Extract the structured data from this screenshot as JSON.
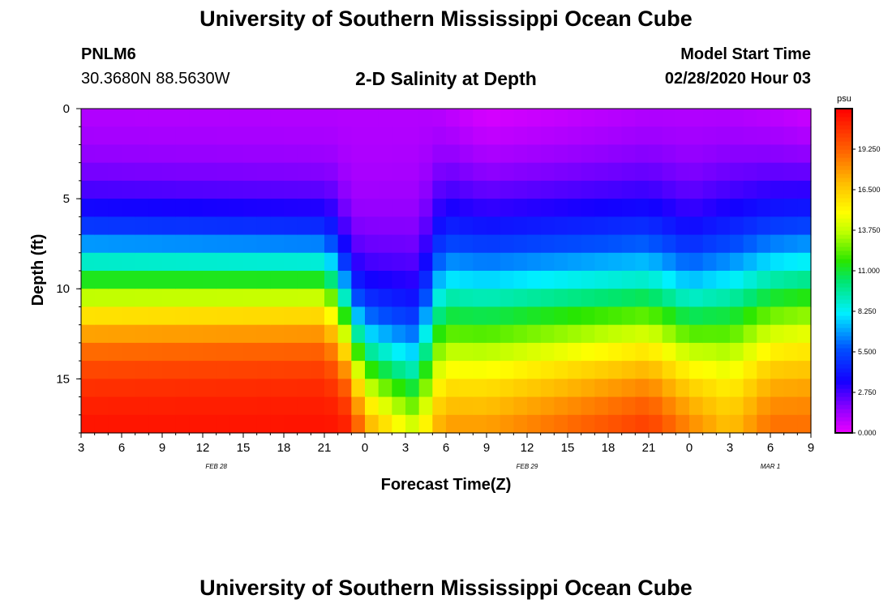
{
  "header": {
    "title": "University of Southern Mississippi Ocean Cube",
    "station": "PNLM6",
    "coords": "30.3680N 88.5630W",
    "plot_title": "2-D Salinity at Depth",
    "model_start_label": "Model Start Time",
    "model_start_value": "02/28/2020 Hour 03"
  },
  "footer": {
    "title": "University of Southern Mississippi Ocean Cube"
  },
  "chart_data": {
    "type": "heatmap",
    "title": "2-D Salinity at Depth",
    "xlabel": "Forecast Time(Z)",
    "ylabel": "Depth (ft)",
    "x_hours": {
      "start": 3,
      "end": 57,
      "step": 1
    },
    "x_tick_labels": [
      "3",
      "6",
      "9",
      "12",
      "15",
      "18",
      "21",
      "0",
      "3",
      "6",
      "9",
      "12",
      "15",
      "18",
      "21",
      "0",
      "3",
      "6",
      "9"
    ],
    "date_labels": [
      {
        "label": "FEB 28",
        "hour": 13
      },
      {
        "label": "FEB 29",
        "hour": 36
      },
      {
        "label": "MAR 1",
        "hour": 54
      }
    ],
    "y_ticks": [
      0,
      5,
      10,
      15
    ],
    "ylim": [
      0,
      18
    ],
    "depth_rows": 18,
    "colorbar": {
      "unit": "psu",
      "min": 0,
      "max": 22,
      "tick_labels": [
        "0.000",
        "2.750",
        "5.500",
        "8.250",
        "11.000",
        "13.750",
        "16.500",
        "19.250"
      ],
      "tick_values": [
        0,
        2.75,
        5.5,
        8.25,
        11,
        13.75,
        16.5,
        19.25
      ]
    },
    "profiles": [
      {
        "hour": 3,
        "surface": 1.0,
        "bottom": 21.5,
        "mid_depth": 9.5,
        "width": 2.2
      },
      {
        "hour": 21,
        "surface": 1.0,
        "bottom": 21.5,
        "mid_depth": 9.5,
        "width": 2.0
      },
      {
        "hour": 22,
        "surface": 1.0,
        "bottom": 21.5,
        "mid_depth": 10.5,
        "width": 2.2
      },
      {
        "hour": 23,
        "surface": 1.0,
        "bottom": 21.0,
        "mid_depth": 12.5,
        "width": 2.0
      },
      {
        "hour": 24,
        "surface": 1.0,
        "bottom": 18.0,
        "mid_depth": 14.0,
        "width": 2.4
      },
      {
        "hour": 27,
        "surface": 1.0,
        "bottom": 15.0,
        "mid_depth": 15.0,
        "width": 2.8
      },
      {
        "hour": 28,
        "surface": 1.0,
        "bottom": 14.5,
        "mid_depth": 15.0,
        "width": 2.8
      },
      {
        "hour": 29,
        "surface": 1.0,
        "bottom": 17.0,
        "mid_depth": 12.0,
        "width": 3.2
      },
      {
        "hour": 30,
        "surface": 0.8,
        "bottom": 18.0,
        "mid_depth": 11.0,
        "width": 3.5
      },
      {
        "hour": 33,
        "surface": 0.3,
        "bottom": 18.0,
        "mid_depth": 11.0,
        "width": 3.5
      },
      {
        "hour": 45,
        "surface": 1.0,
        "bottom": 20.5,
        "mid_depth": 11.0,
        "width": 3.2
      },
      {
        "hour": 48,
        "surface": 1.0,
        "bottom": 18.5,
        "mid_depth": 11.5,
        "width": 3.0
      },
      {
        "hour": 51,
        "surface": 1.0,
        "bottom": 17.0,
        "mid_depth": 10.5,
        "width": 3.2
      },
      {
        "hour": 54,
        "surface": 0.8,
        "bottom": 19.0,
        "mid_depth": 10.0,
        "width": 3.2
      },
      {
        "hour": 57,
        "surface": 0.5,
        "bottom": 19.0,
        "mid_depth": 9.5,
        "width": 3.2
      }
    ]
  }
}
